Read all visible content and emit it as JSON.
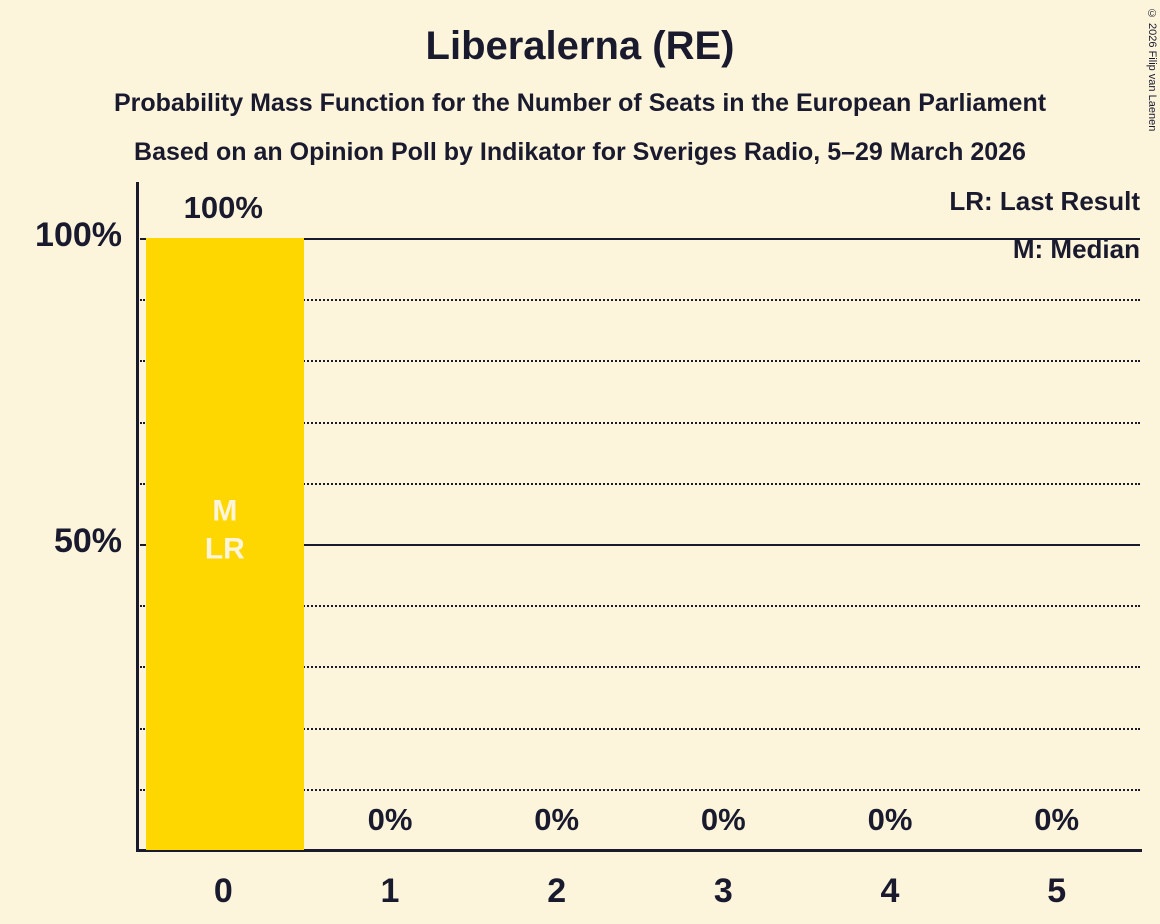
{
  "title": "Liberalerna (RE)",
  "subtitle1": "Probability Mass Function for the Number of Seats in the European Parliament",
  "subtitle2": "Based on an Opinion Poll by Indikator for Sveriges Radio, 5–29 March 2026",
  "legend": {
    "last_result": "LR: Last Result",
    "median": "M: Median"
  },
  "copyright": "© 2026 Filip van Laenen",
  "colors": {
    "background": "#FCF5DC",
    "bar": "#FFD700",
    "text": "#1A1A2E",
    "bar_label": "#FCF5DC"
  },
  "chart_data": {
    "type": "bar",
    "title": "Liberalerna (RE)",
    "xlabel": "",
    "ylabel": "",
    "categories": [
      "0",
      "1",
      "2",
      "3",
      "4",
      "5"
    ],
    "values": [
      100,
      0,
      0,
      0,
      0,
      0
    ],
    "value_labels": [
      "100%",
      "0%",
      "0%",
      "0%",
      "0%",
      "0%"
    ],
    "ylim": [
      0,
      100
    ],
    "yticks": [
      {
        "value": 100,
        "label": "100%"
      },
      {
        "value": 50,
        "label": "50%"
      }
    ],
    "solid_gridlines": [
      100,
      50
    ],
    "dotted_gridlines": [
      90,
      80,
      70,
      60,
      40,
      30,
      20,
      10
    ],
    "grid": true,
    "legend_position": "top-right",
    "median_seat": 0,
    "last_result_seat": 0,
    "bar_labels": [
      {
        "seat": 0,
        "lines": [
          "M",
          "LR"
        ]
      }
    ]
  }
}
